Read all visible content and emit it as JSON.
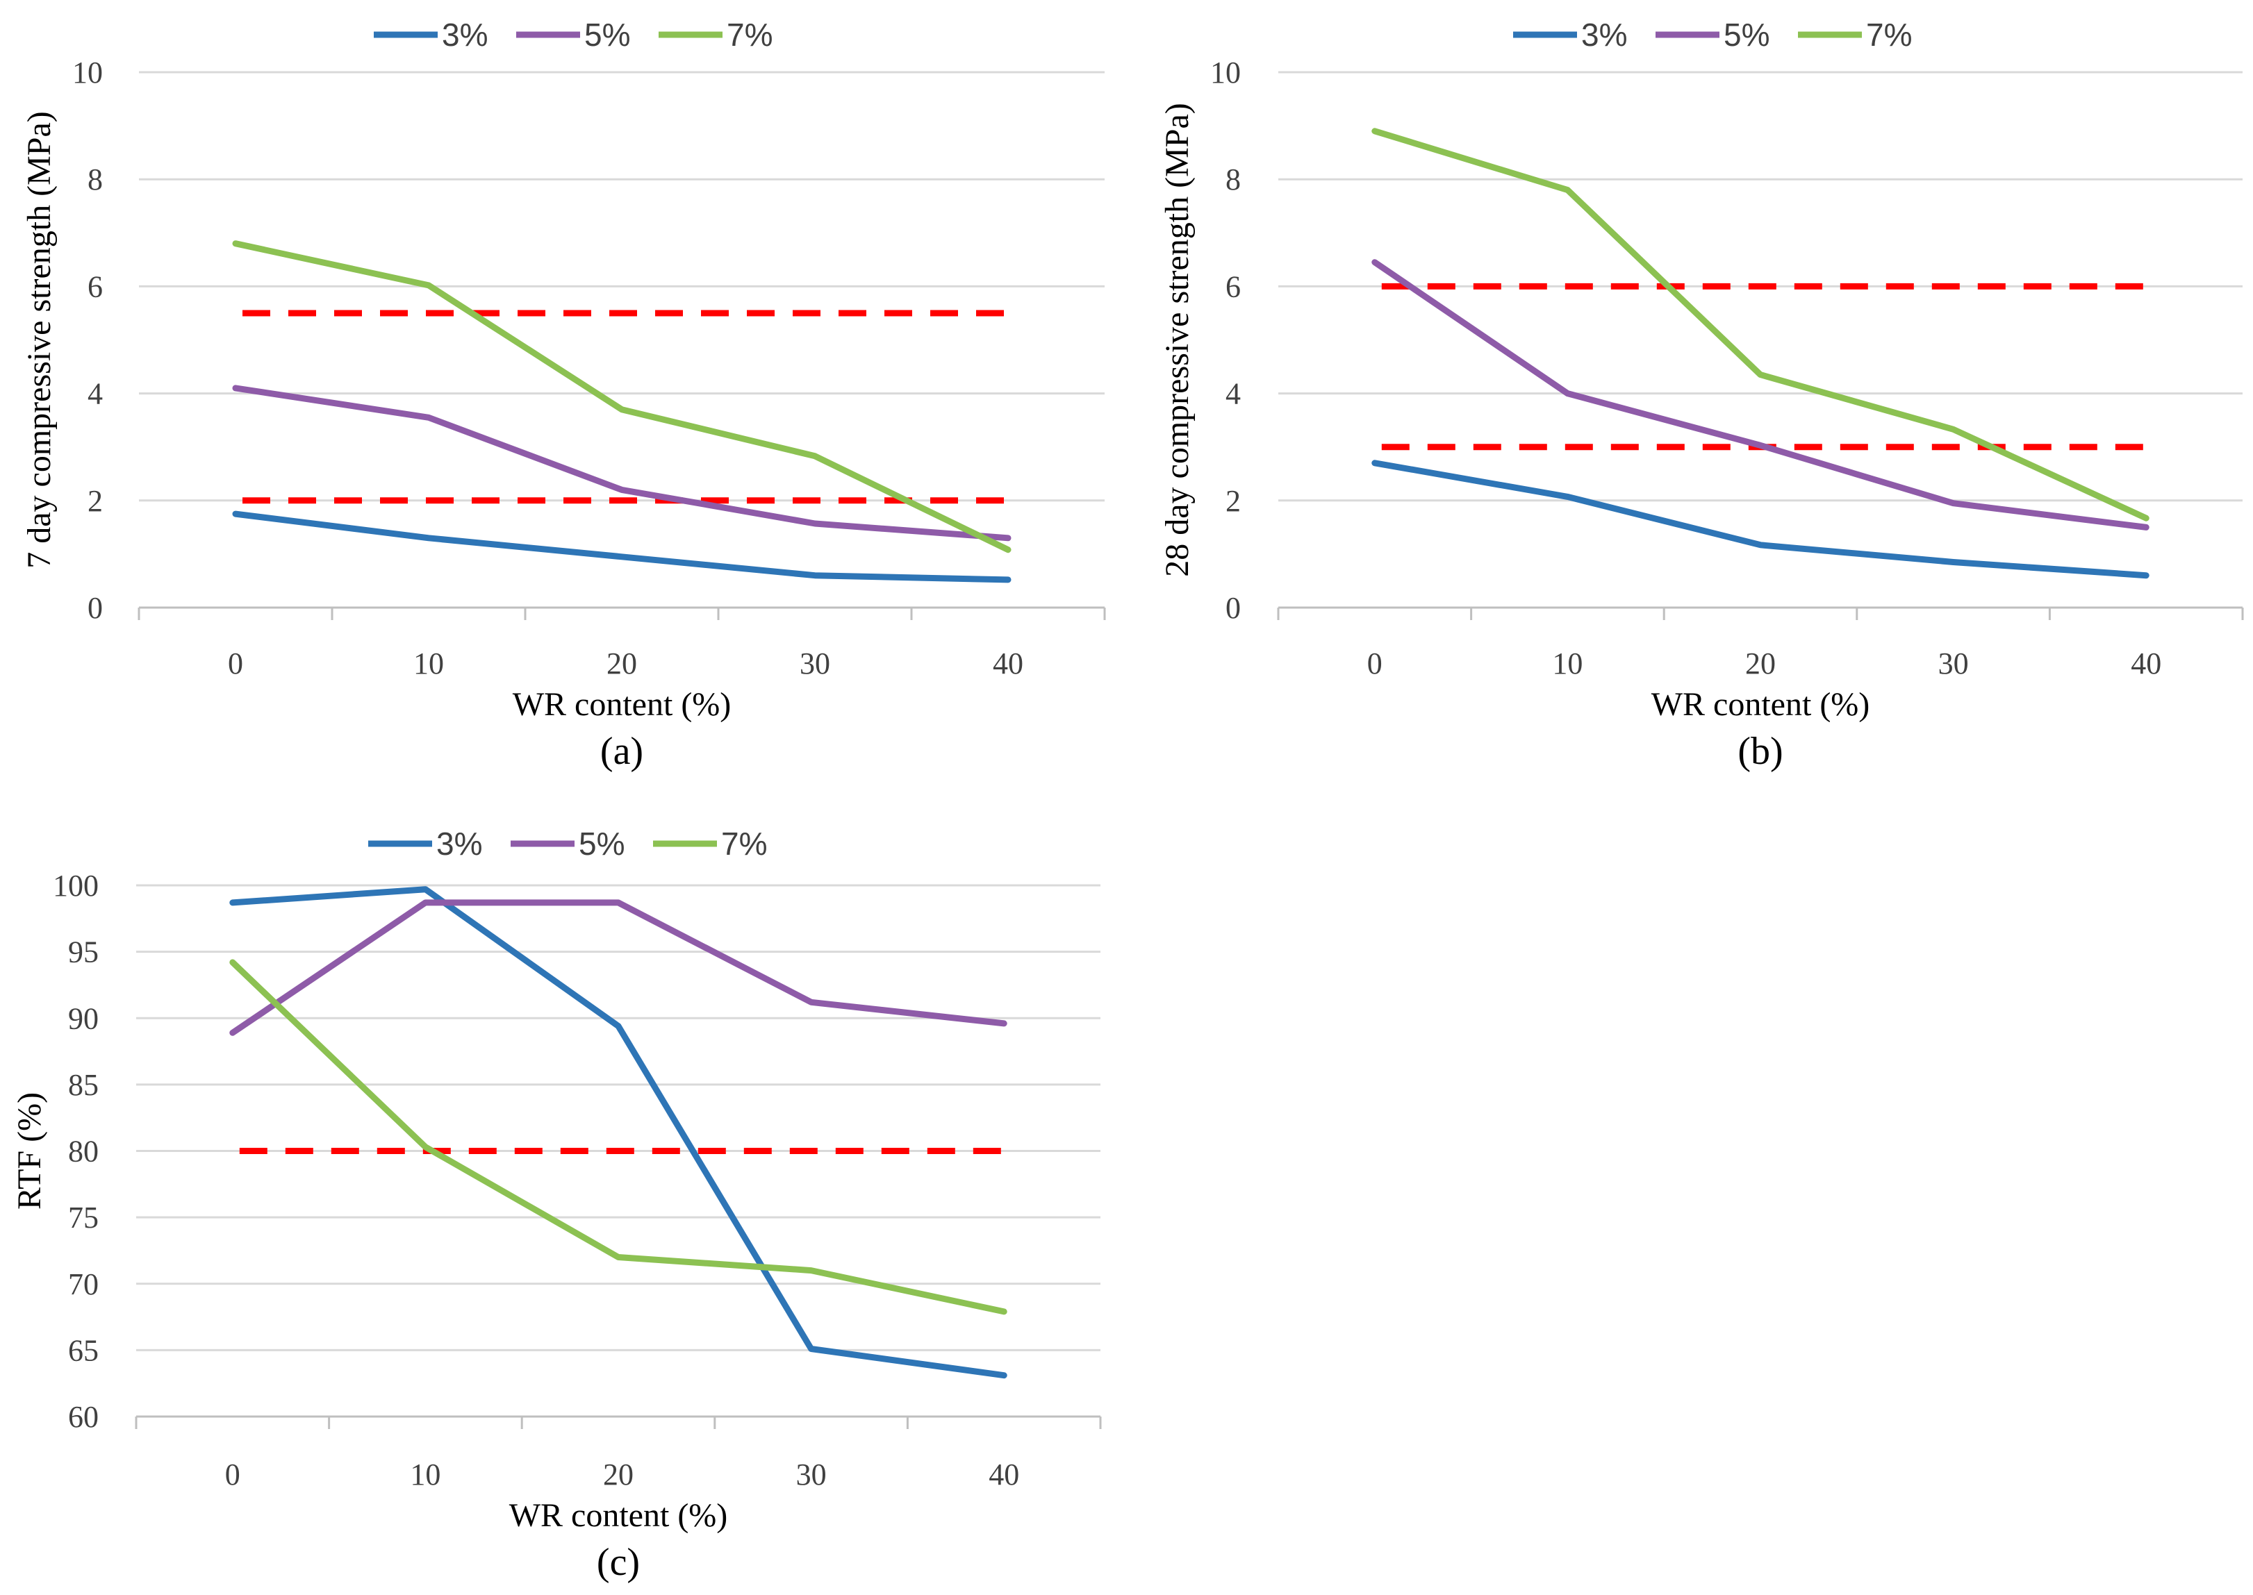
{
  "chart_data": [
    {
      "type": "line",
      "panel_label": "(a)",
      "xlabel": "WR content (%)",
      "ylabel": "7 day compressive strength (MPa)",
      "categories": [
        "0",
        "10",
        "20",
        "30",
        "40"
      ],
      "ylim": [
        0,
        10
      ],
      "yticks": [
        "0",
        "2",
        "4",
        "6",
        "8",
        "10"
      ],
      "ytick_values": [
        0,
        2,
        4,
        6,
        8,
        10
      ],
      "legend_position": "top",
      "grid": true,
      "series": [
        {
          "name": "3%",
          "color": "#2e75b6",
          "values": [
            1.75,
            1.3,
            0.95,
            0.6,
            0.52
          ]
        },
        {
          "name": "5%",
          "color": "#8e5ba8",
          "values": [
            4.1,
            3.55,
            2.2,
            1.57,
            1.3
          ]
        },
        {
          "name": "7%",
          "color": "#8cc152",
          "values": [
            6.8,
            6.02,
            3.7,
            2.83,
            1.08
          ]
        }
      ],
      "reference_lines": [
        {
          "value": 5.5,
          "color": "#ff0000"
        },
        {
          "value": 2.0,
          "color": "#ff0000"
        }
      ]
    },
    {
      "type": "line",
      "panel_label": "(b)",
      "xlabel": "WR content (%)",
      "ylabel": "28 day compressive strength (MPa)",
      "categories": [
        "0",
        "10",
        "20",
        "30",
        "40"
      ],
      "ylim": [
        0,
        10
      ],
      "yticks": [
        "0",
        "2",
        "4",
        "6",
        "8",
        "10"
      ],
      "ytick_values": [
        0,
        2,
        4,
        6,
        8,
        10
      ],
      "legend_position": "top",
      "grid": true,
      "series": [
        {
          "name": "3%",
          "color": "#2e75b6",
          "values": [
            2.7,
            2.07,
            1.17,
            0.85,
            0.6
          ]
        },
        {
          "name": "5%",
          "color": "#8e5ba8",
          "values": [
            6.45,
            4.0,
            3.03,
            1.95,
            1.5
          ]
        },
        {
          "name": "7%",
          "color": "#8cc152",
          "values": [
            8.9,
            7.8,
            4.35,
            3.33,
            1.67
          ]
        }
      ],
      "reference_lines": [
        {
          "value": 6.0,
          "color": "#ff0000"
        },
        {
          "value": 3.0,
          "color": "#ff0000"
        }
      ]
    },
    {
      "type": "line",
      "panel_label": "(c)",
      "xlabel": "WR content (%)",
      "ylabel": "RTF (%)",
      "categories": [
        "0",
        "10",
        "20",
        "30",
        "40"
      ],
      "ylim": [
        60,
        100
      ],
      "yticks": [
        "60",
        "65",
        "70",
        "75",
        "80",
        "85",
        "90",
        "95",
        "100"
      ],
      "ytick_values": [
        60,
        65,
        70,
        75,
        80,
        85,
        90,
        95,
        100
      ],
      "legend_position": "top",
      "grid": true,
      "series": [
        {
          "name": "3%",
          "color": "#2e75b6",
          "values": [
            98.7,
            99.7,
            89.4,
            65.1,
            63.1
          ]
        },
        {
          "name": "5%",
          "color": "#8e5ba8",
          "values": [
            88.9,
            98.7,
            98.7,
            91.2,
            89.6
          ]
        },
        {
          "name": "7%",
          "color": "#8cc152",
          "values": [
            94.2,
            80.3,
            72.0,
            71.0,
            67.9
          ]
        }
      ],
      "reference_lines": [
        {
          "value": 80.0,
          "color": "#ff0000"
        }
      ]
    }
  ]
}
